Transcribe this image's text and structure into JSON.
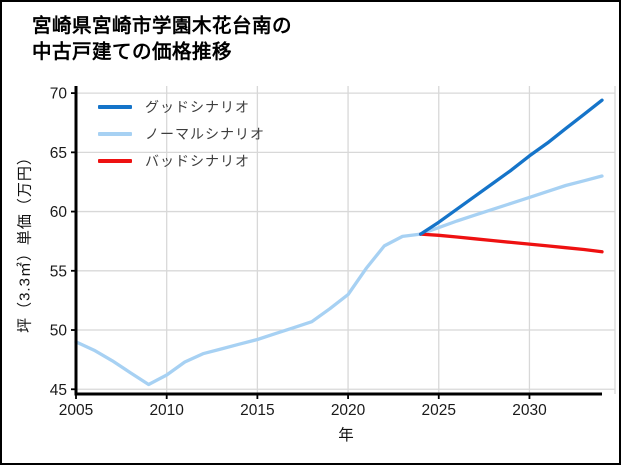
{
  "title": {
    "line1": "宮崎県宮崎市学園木花台南の",
    "line2": "中古戸建ての価格推移"
  },
  "chart_data": {
    "type": "line",
    "title": "宮崎県宮崎市学園木花台南の中古戸建ての価格推移",
    "xlabel": "年",
    "ylabel": "坪（3.3㎡）単価（万円）",
    "xlim": [
      2005,
      2034
    ],
    "ylim": [
      44.6,
      70.6
    ],
    "xticks": [
      2005,
      2010,
      2015,
      2020,
      2025,
      2030
    ],
    "yticks": [
      45,
      50,
      55,
      60,
      65,
      70
    ],
    "grid": true,
    "legend_position": "upper-left",
    "colors": {
      "good": "#1574c9",
      "normal": "#a7d1f3",
      "bad": "#ee1111",
      "grid": "#d8d8d8",
      "axis": "#000000",
      "tick_label": "#1a1a1a"
    },
    "legend": [
      {
        "id": "good",
        "label": "グッドシナリオ"
      },
      {
        "id": "normal",
        "label": "ノーマルシナリオ"
      },
      {
        "id": "bad",
        "label": "バッドシナリオ"
      }
    ],
    "series": [
      {
        "id": "history",
        "color": "#a7d1f3",
        "x": [
          2005,
          2006,
          2007,
          2008,
          2009,
          2010,
          2011,
          2012,
          2013,
          2014,
          2015,
          2016,
          2017,
          2018,
          2019,
          2020,
          2021,
          2022,
          2023,
          2024
        ],
        "y": [
          49.0,
          48.3,
          47.4,
          46.4,
          45.4,
          46.2,
          47.3,
          48.0,
          48.4,
          48.8,
          49.2,
          49.7,
          50.2,
          50.7,
          51.8,
          53.0,
          55.2,
          57.1,
          57.9,
          58.1
        ]
      },
      {
        "id": "normal",
        "label": "ノーマルシナリオ",
        "color": "#a7d1f3",
        "x": [
          2024,
          2025,
          2026,
          2027,
          2028,
          2029,
          2030,
          2031,
          2032,
          2033,
          2034
        ],
        "y": [
          58.1,
          58.65,
          59.2,
          59.7,
          60.2,
          60.7,
          61.2,
          61.7,
          62.2,
          62.6,
          63.0
        ]
      },
      {
        "id": "bad",
        "label": "バッドシナリオ",
        "color": "#ee1111",
        "x": [
          2024,
          2025,
          2026,
          2027,
          2028,
          2029,
          2030,
          2031,
          2032,
          2033,
          2034
        ],
        "y": [
          58.1,
          58.0,
          57.85,
          57.7,
          57.55,
          57.4,
          57.25,
          57.1,
          56.95,
          56.8,
          56.6
        ]
      },
      {
        "id": "good",
        "label": "グッドシナリオ",
        "color": "#1574c9",
        "x": [
          2024,
          2025,
          2026,
          2027,
          2028,
          2029,
          2030,
          2031,
          2032,
          2033,
          2034
        ],
        "y": [
          58.1,
          59.1,
          60.2,
          61.3,
          62.4,
          63.5,
          64.7,
          65.8,
          67.0,
          68.2,
          69.4
        ]
      }
    ]
  }
}
